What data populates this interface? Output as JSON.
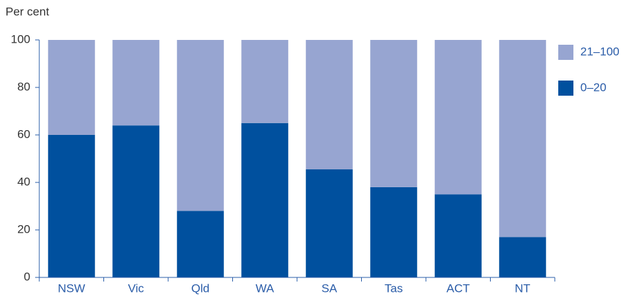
{
  "chart_data": {
    "type": "stacked_bar",
    "y_axis_label": "Per cent",
    "categories": [
      "NSW",
      "Vic",
      "Qld",
      "WA",
      "SA",
      "Tas",
      "ACT",
      "NT"
    ],
    "series": [
      {
        "name": "0–20",
        "color": "#00509e",
        "values": [
          60,
          64,
          28,
          65,
          45.5,
          38,
          35,
          17
        ]
      },
      {
        "name": "21–100",
        "color": "#97a5d1",
        "values": [
          40,
          36,
          72,
          35,
          54.5,
          62,
          65,
          83
        ]
      }
    ],
    "ylim": [
      0,
      100
    ],
    "yticks": [
      0,
      20,
      40,
      60,
      80,
      100
    ],
    "legend": "right"
  }
}
